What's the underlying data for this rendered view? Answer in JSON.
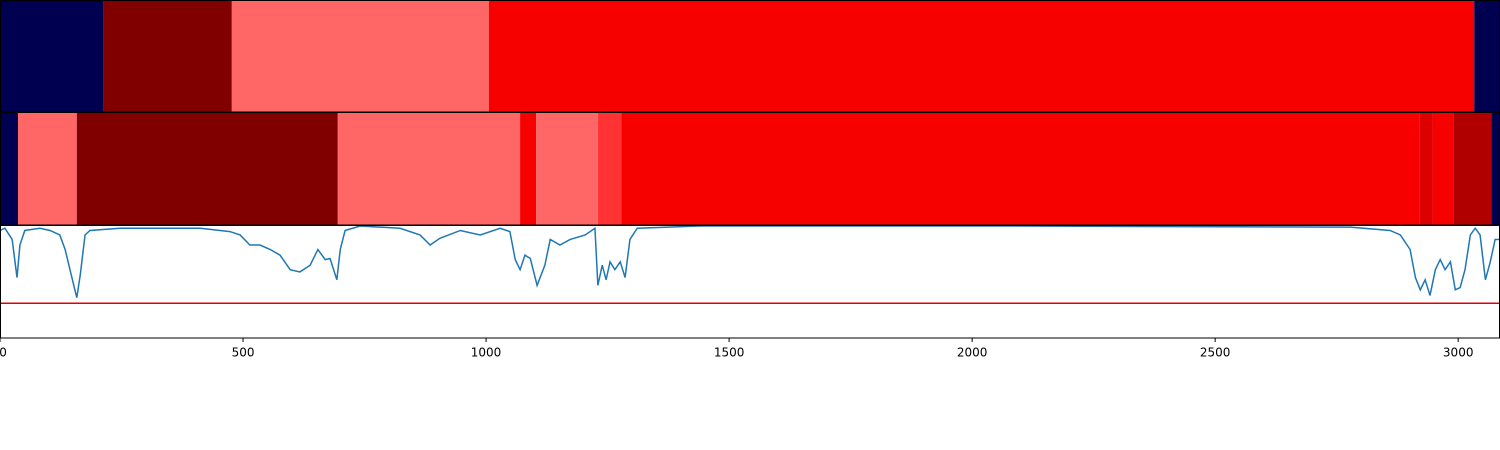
{
  "chart_data": [
    {
      "type": "segments",
      "xlim": [
        0,
        3086
      ],
      "segments": [
        {
          "start": 0,
          "end": 212,
          "color": "#000050"
        },
        {
          "start": 212,
          "end": 477,
          "color": "#800000"
        },
        {
          "start": 477,
          "end": 1006,
          "color": "#ff6666"
        },
        {
          "start": 1006,
          "end": 3033,
          "color": "#f70000"
        },
        {
          "start": 3033,
          "end": 3086,
          "color": "#000050"
        }
      ]
    },
    {
      "type": "segments",
      "xlim": [
        0,
        3086
      ],
      "segments": [
        {
          "start": 0,
          "end": 37,
          "color": "#000050"
        },
        {
          "start": 37,
          "end": 158,
          "color": "#ff6666"
        },
        {
          "start": 158,
          "end": 695,
          "color": "#800000"
        },
        {
          "start": 695,
          "end": 1070,
          "color": "#ff6666"
        },
        {
          "start": 1070,
          "end": 1103,
          "color": "#f70000"
        },
        {
          "start": 1103,
          "end": 1230,
          "color": "#ff6666"
        },
        {
          "start": 1230,
          "end": 1278,
          "color": "#ff3333"
        },
        {
          "start": 1278,
          "end": 2920,
          "color": "#f70000"
        },
        {
          "start": 2920,
          "end": 2947,
          "color": "#dd0000"
        },
        {
          "start": 2947,
          "end": 2990,
          "color": "#f70000"
        },
        {
          "start": 2990,
          "end": 3068,
          "color": "#b00000"
        },
        {
          "start": 3068,
          "end": 3086,
          "color": "#000050"
        }
      ]
    },
    {
      "type": "line",
      "xlim": [
        0,
        3086
      ],
      "ylim": [
        0,
        1
      ],
      "xticks": [
        0,
        500,
        1000,
        1500,
        2000,
        2500,
        3000
      ],
      "x": [
        0,
        10,
        25,
        35,
        41,
        51,
        82,
        103,
        123,
        134,
        144,
        154,
        158,
        165,
        175,
        185,
        247,
        412,
        473,
        494,
        514,
        535,
        556,
        576,
        597,
        617,
        638,
        654,
        669,
        679,
        693,
        700,
        710,
        741,
        823,
        864,
        885,
        905,
        947,
        988,
        1029,
        1049,
        1060,
        1070,
        1080,
        1091,
        1105,
        1121,
        1132,
        1152,
        1173,
        1204,
        1224,
        1230,
        1239,
        1247,
        1255,
        1265,
        1276,
        1286,
        1296,
        1311,
        1440,
        2058,
        2778,
        2860,
        2881,
        2901,
        2912,
        2922,
        2932,
        2942,
        2953,
        2963,
        2973,
        2984,
        2994,
        3004,
        3014,
        3025,
        3035,
        3045,
        3056,
        3066,
        3076,
        3086
      ],
      "series": [
        {
          "color": "#1f77b4",
          "values": [
            0.96,
            0.98,
            0.88,
            0.54,
            0.83,
            0.96,
            0.98,
            0.96,
            0.92,
            0.79,
            0.61,
            0.43,
            0.36,
            0.56,
            0.92,
            0.96,
            0.98,
            0.98,
            0.95,
            0.92,
            0.83,
            0.83,
            0.79,
            0.74,
            0.61,
            0.59,
            0.65,
            0.79,
            0.7,
            0.71,
            0.52,
            0.79,
            0.96,
            1.0,
            0.98,
            0.92,
            0.83,
            0.89,
            0.96,
            0.92,
            0.98,
            0.95,
            0.7,
            0.61,
            0.74,
            0.71,
            0.47,
            0.65,
            0.88,
            0.83,
            0.88,
            0.92,
            0.98,
            0.47,
            0.65,
            0.52,
            0.68,
            0.61,
            0.68,
            0.54,
            0.88,
            0.98,
            1.0,
            1.0,
            0.99,
            0.96,
            0.92,
            0.79,
            0.54,
            0.43,
            0.52,
            0.38,
            0.61,
            0.7,
            0.61,
            0.68,
            0.43,
            0.45,
            0.61,
            0.92,
            0.98,
            0.92,
            0.52,
            0.68,
            0.88,
            0.88
          ]
        }
      ],
      "hlines": [
        {
          "value": 0.31,
          "color": "#e00000"
        }
      ]
    }
  ]
}
